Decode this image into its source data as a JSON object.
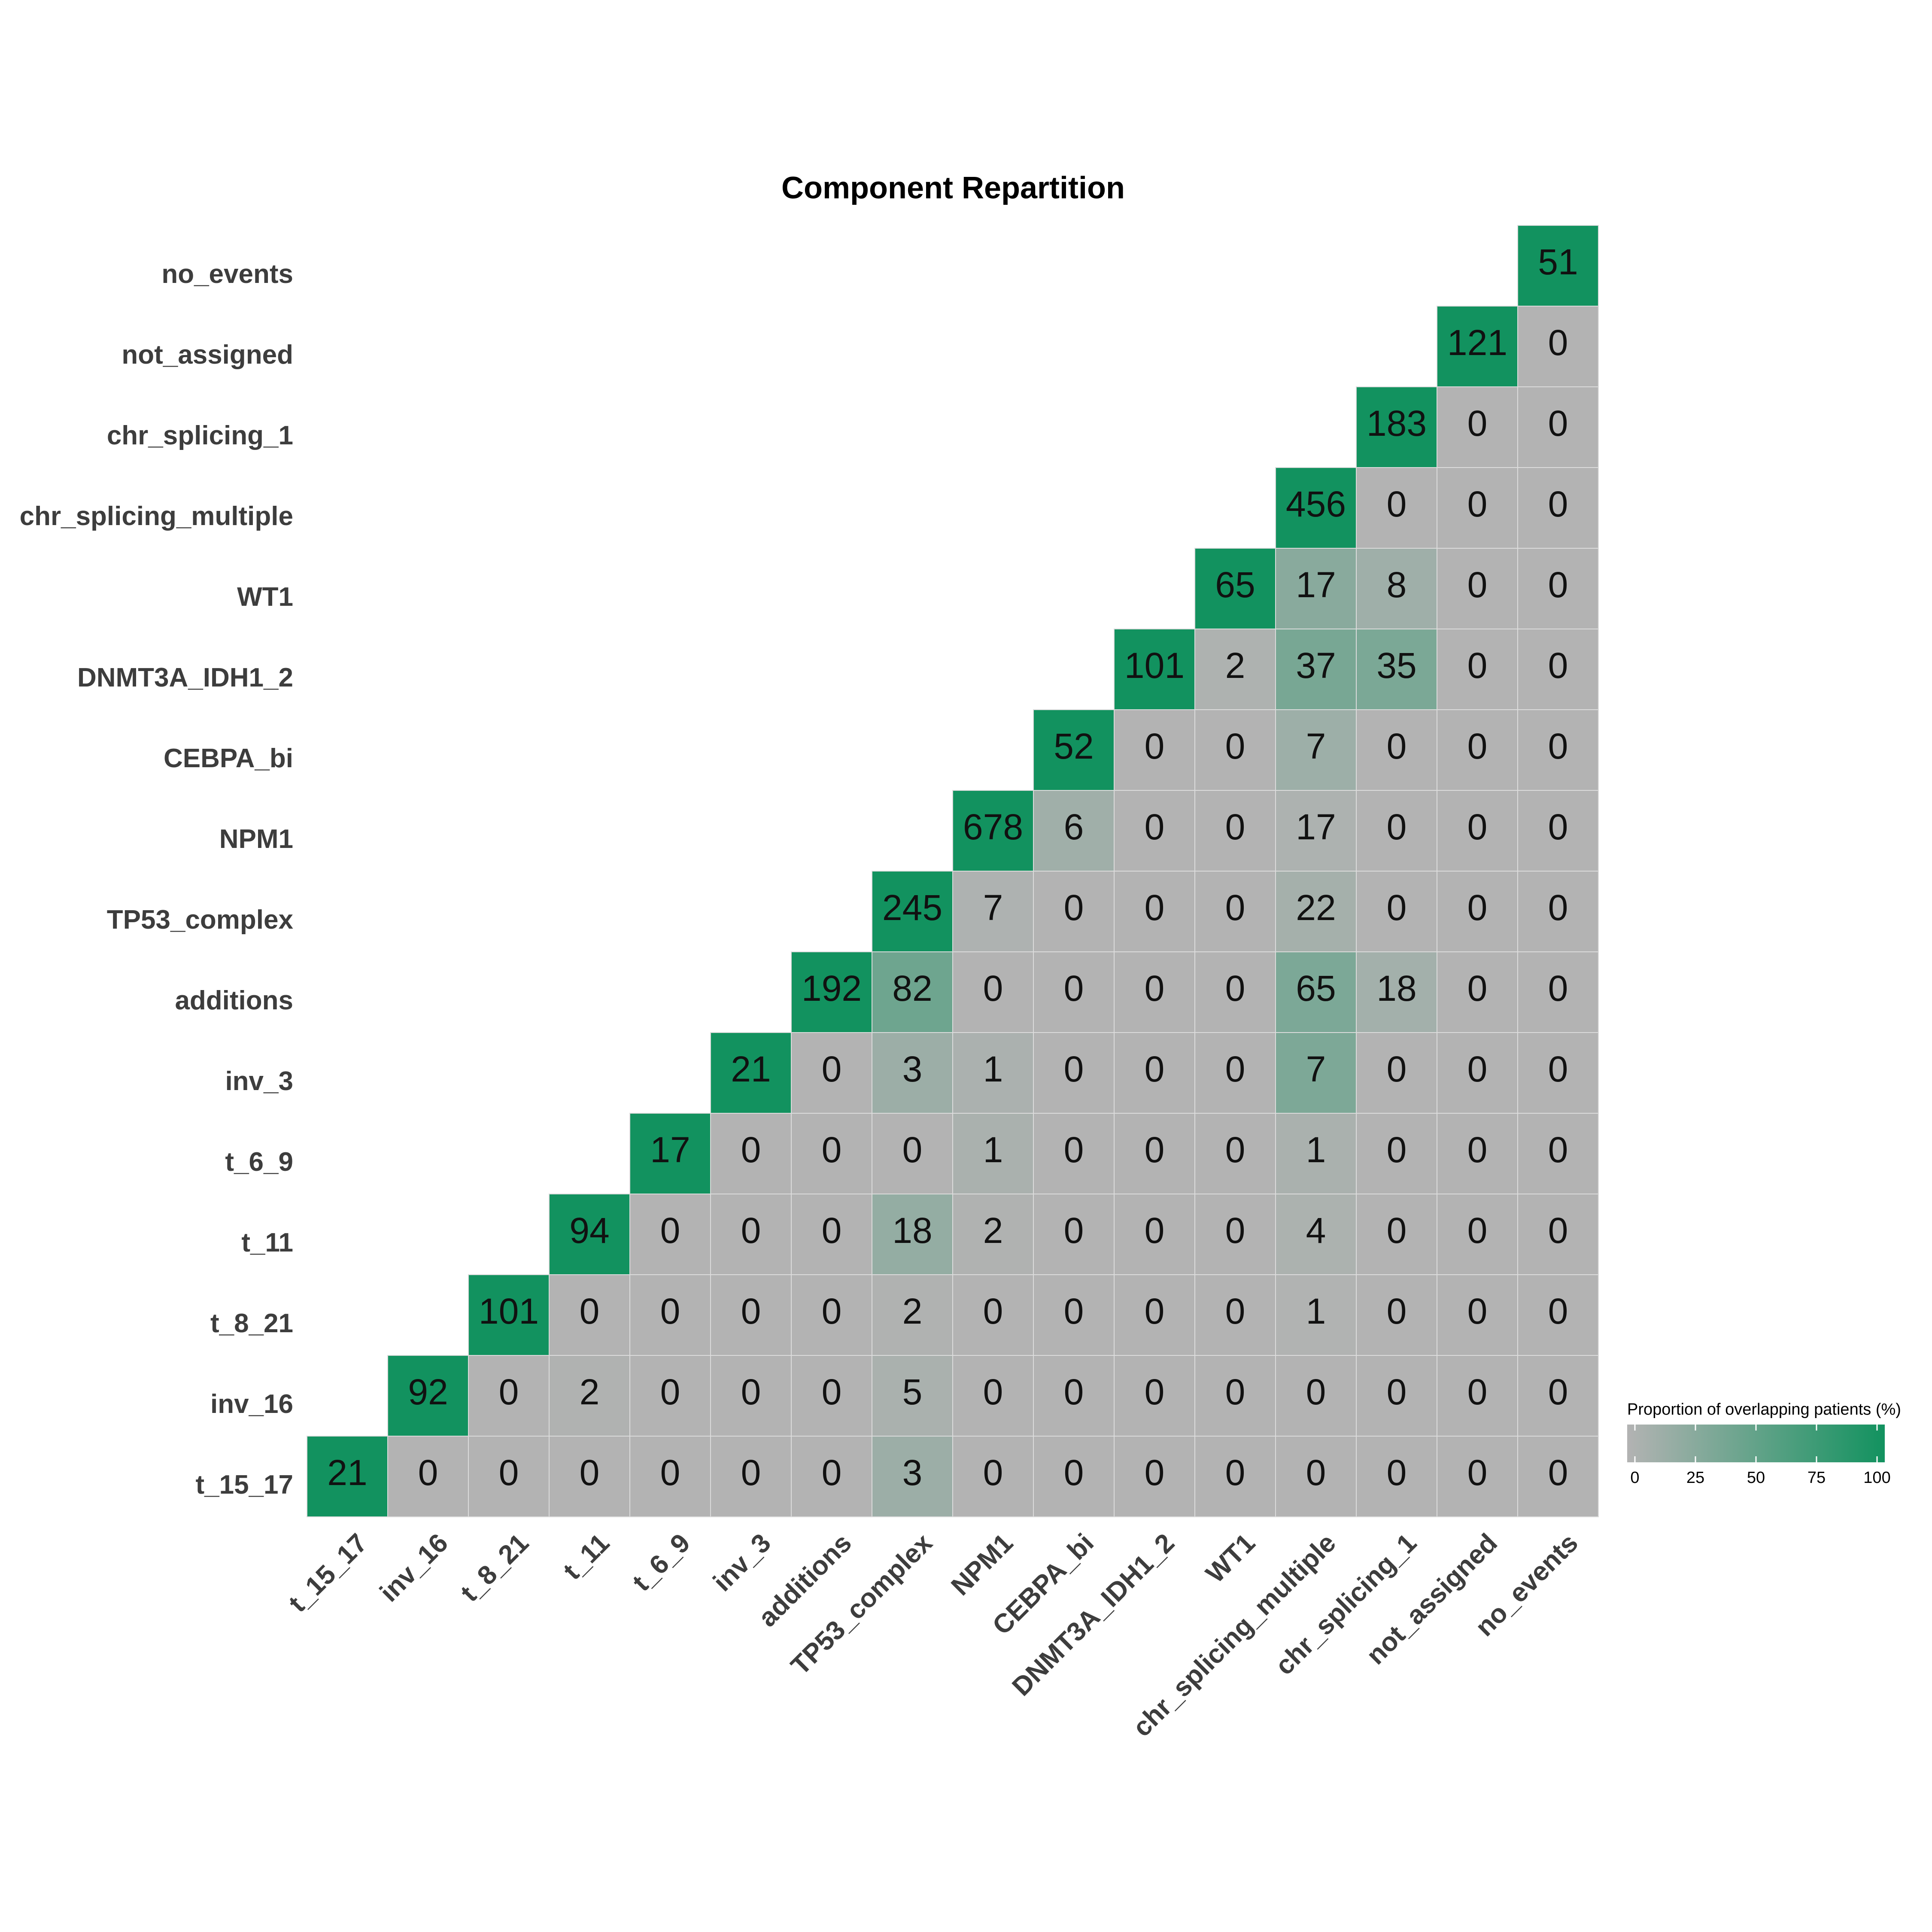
{
  "colors": {
    "low": "#b3b3b3",
    "high": "#12925f",
    "grid": "#dcdcdc"
  },
  "chart_data": {
    "type": "heatmap",
    "title": "Component Repartition",
    "xlabel": "",
    "ylabel": "",
    "categories": [
      "t_15_17",
      "inv_16",
      "t_8_21",
      "t_11",
      "t_6_9",
      "inv_3",
      "additions",
      "TP53_complex",
      "NPM1",
      "CEBPA_bi",
      "DNMT3A_IDH1_2",
      "WT1",
      "chr_splicing_multiple",
      "chr_splicing_1",
      "not_assigned",
      "no_events"
    ],
    "counts": [
      [
        21,
        0,
        0,
        0,
        0,
        0,
        0,
        3,
        0,
        0,
        0,
        0,
        0,
        0,
        0,
        0
      ],
      [
        null,
        92,
        0,
        2,
        0,
        0,
        0,
        5,
        0,
        0,
        0,
        0,
        0,
        0,
        0,
        0
      ],
      [
        null,
        null,
        101,
        0,
        0,
        0,
        0,
        2,
        0,
        0,
        0,
        0,
        1,
        0,
        0,
        0
      ],
      [
        null,
        null,
        null,
        94,
        0,
        0,
        0,
        18,
        2,
        0,
        0,
        0,
        4,
        0,
        0,
        0
      ],
      [
        null,
        null,
        null,
        null,
        17,
        0,
        0,
        0,
        1,
        0,
        0,
        0,
        1,
        0,
        0,
        0
      ],
      [
        null,
        null,
        null,
        null,
        null,
        21,
        0,
        3,
        1,
        0,
        0,
        0,
        7,
        0,
        0,
        0
      ],
      [
        null,
        null,
        null,
        null,
        null,
        null,
        192,
        82,
        0,
        0,
        0,
        0,
        65,
        18,
        0,
        0
      ],
      [
        null,
        null,
        null,
        null,
        null,
        null,
        null,
        245,
        7,
        0,
        0,
        0,
        22,
        0,
        0,
        0
      ],
      [
        null,
        null,
        null,
        null,
        null,
        null,
        null,
        null,
        678,
        6,
        0,
        0,
        17,
        0,
        0,
        0
      ],
      [
        null,
        null,
        null,
        null,
        null,
        null,
        null,
        null,
        null,
        52,
        0,
        0,
        7,
        0,
        0,
        0
      ],
      [
        null,
        null,
        null,
        null,
        null,
        null,
        null,
        null,
        null,
        null,
        101,
        2,
        37,
        35,
        0,
        0
      ],
      [
        null,
        null,
        null,
        null,
        null,
        null,
        null,
        null,
        null,
        null,
        null,
        65,
        17,
        8,
        0,
        0
      ],
      [
        null,
        null,
        null,
        null,
        null,
        null,
        null,
        null,
        null,
        null,
        null,
        null,
        456,
        0,
        0,
        0
      ],
      [
        null,
        null,
        null,
        null,
        null,
        null,
        null,
        null,
        null,
        null,
        null,
        null,
        null,
        183,
        0,
        0
      ],
      [
        null,
        null,
        null,
        null,
        null,
        null,
        null,
        null,
        null,
        null,
        null,
        null,
        null,
        null,
        121,
        0
      ],
      [
        null,
        null,
        null,
        null,
        null,
        null,
        null,
        null,
        null,
        null,
        null,
        null,
        null,
        null,
        null,
        51
      ]
    ],
    "legend": {
      "title": "Proportion of overlapping patients (%)",
      "ticks": [
        0,
        25,
        50,
        75,
        100
      ],
      "range": [
        0,
        100
      ],
      "placement": "bottom-right"
    },
    "grid": false
  }
}
